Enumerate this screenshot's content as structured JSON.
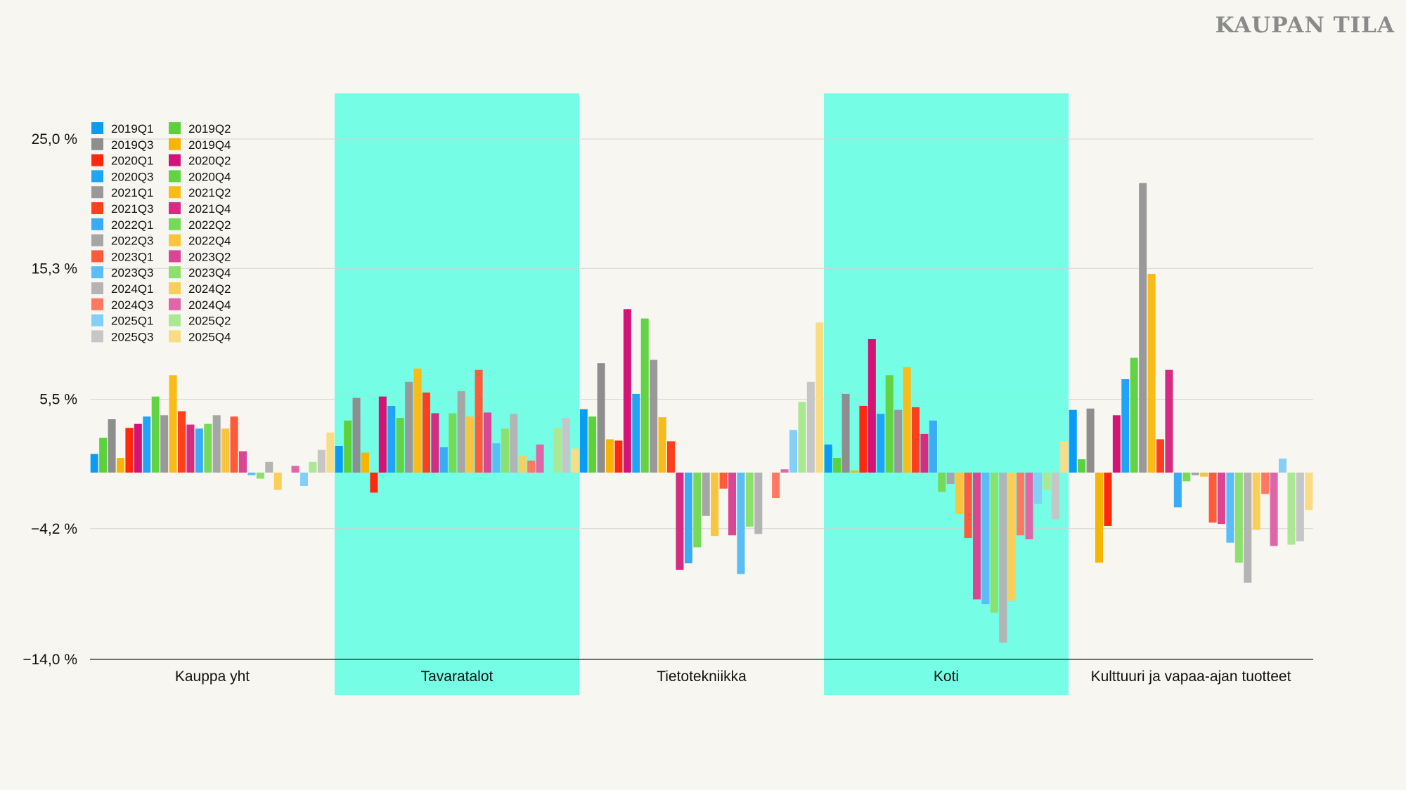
{
  "title": "KAUPAN TILA",
  "chart_data": {
    "type": "bar",
    "title": "KAUPAN TILA",
    "xlabel": "",
    "ylabel": "",
    "ylim": [
      -14.0,
      25.0
    ],
    "yticks": [
      25.0,
      15.3,
      5.5,
      -4.2,
      -14.0
    ],
    "ytick_labels": [
      "25,0 %",
      "15,3 %",
      "5,5 %",
      "−4,2 %",
      "−14,0 %"
    ],
    "grid": true,
    "legend_placement": "top-left",
    "highlighted_categories": [
      "Tavaratalot",
      "Koti"
    ],
    "highlight_color": "#76fde6",
    "categories": [
      "Kauppa yht",
      "Tavaratalot",
      "Tietotekniikka",
      "Koti",
      "Kulttuuri ja vapaa-ajan tuotteet"
    ],
    "series": [
      {
        "name": "2019Q1",
        "color": "#0a9cf5",
        "values": [
          1.4,
          2.0,
          4.75,
          2.1,
          4.7
        ]
      },
      {
        "name": "2019Q2",
        "color": "#5bd23c",
        "values": [
          2.6,
          3.9,
          4.2,
          1.1,
          1.0
        ]
      },
      {
        "name": "2019Q3",
        "color": "#8e8e8e",
        "values": [
          4.0,
          5.6,
          8.2,
          5.9,
          4.8
        ]
      },
      {
        "name": "2019Q4",
        "color": "#f7b500",
        "values": [
          1.1,
          1.5,
          2.5,
          0.15,
          -6.75
        ]
      },
      {
        "name": "2020Q1",
        "color": "#ff2a0e",
        "values": [
          3.35,
          -1.5,
          2.4,
          5.0,
          -4.0
        ]
      },
      {
        "name": "2020Q2",
        "color": "#d31476",
        "values": [
          3.65,
          5.7,
          12.25,
          10.0,
          4.3
        ]
      },
      {
        "name": "2020Q3",
        "color": "#1ea5f5",
        "values": [
          4.2,
          5.0,
          5.9,
          4.4,
          7.0
        ]
      },
      {
        "name": "2020Q4",
        "color": "#62d444",
        "values": [
          5.7,
          4.1,
          11.55,
          7.3,
          8.6
        ]
      },
      {
        "name": "2021Q1",
        "color": "#999999",
        "values": [
          4.3,
          6.8,
          8.45,
          4.7,
          21.7
        ]
      },
      {
        "name": "2021Q2",
        "color": "#f8bb18",
        "values": [
          7.3,
          7.8,
          4.15,
          7.9,
          14.9
        ]
      },
      {
        "name": "2021Q3",
        "color": "#ff3f20",
        "values": [
          4.6,
          6.0,
          2.35,
          4.9,
          2.5
        ]
      },
      {
        "name": "2021Q4",
        "color": "#d62b82",
        "values": [
          3.6,
          4.45,
          -7.3,
          2.9,
          7.7
        ]
      },
      {
        "name": "2022Q1",
        "color": "#3aacf6",
        "values": [
          3.3,
          1.9,
          -6.8,
          3.9,
          -2.6
        ]
      },
      {
        "name": "2022Q2",
        "color": "#76da56",
        "values": [
          3.65,
          4.45,
          -5.6,
          -1.45,
          -0.65
        ]
      },
      {
        "name": "2022Q3",
        "color": "#a6a6a6",
        "values": [
          4.3,
          6.1,
          -3.25,
          -0.85,
          -0.2
        ]
      },
      {
        "name": "2022Q4",
        "color": "#f9c43e",
        "values": [
          3.3,
          4.2,
          -4.75,
          -3.1,
          -0.3
        ]
      },
      {
        "name": "2023Q1",
        "color": "#ff5a3c",
        "values": [
          4.2,
          7.7,
          -1.2,
          -4.9,
          -3.75
        ]
      },
      {
        "name": "2023Q2",
        "color": "#da4594",
        "values": [
          1.6,
          4.5,
          -4.7,
          -9.5,
          -3.85
        ]
      },
      {
        "name": "2023Q3",
        "color": "#5bbdf8",
        "values": [
          -0.2,
          2.2,
          -7.6,
          -9.85,
          -5.25
        ]
      },
      {
        "name": "2023Q4",
        "color": "#8de06d",
        "values": [
          -0.45,
          3.3,
          -4.05,
          -10.5,
          -6.75
        ]
      },
      {
        "name": "2024Q1",
        "color": "#b4b4b4",
        "values": [
          0.8,
          4.4,
          -4.6,
          -12.75,
          -8.25
        ]
      },
      {
        "name": "2024Q2",
        "color": "#f9cf5c",
        "values": [
          -1.3,
          1.25,
          0,
          -9.6,
          -4.3
        ]
      },
      {
        "name": "2024Q3",
        "color": "#ff7862",
        "values": [
          0,
          0.9,
          -1.9,
          -4.7,
          -1.6
        ]
      },
      {
        "name": "2024Q4",
        "color": "#e066a8",
        "values": [
          0.5,
          2.1,
          0.25,
          -5.0,
          -5.5
        ]
      },
      {
        "name": "2025Q1",
        "color": "#84cffa",
        "values": [
          -1.0,
          0,
          3.2,
          -2.35,
          1.05
        ]
      },
      {
        "name": "2025Q2",
        "color": "#abe894",
        "values": [
          0.8,
          3.35,
          5.3,
          -1.3,
          -5.4
        ]
      },
      {
        "name": "2025Q3",
        "color": "#c6c6c6",
        "values": [
          1.7,
          4.1,
          6.8,
          -3.5,
          -5.15
        ]
      },
      {
        "name": "2025Q4",
        "color": "#fadc85",
        "values": [
          3.0,
          1.8,
          11.25,
          2.35,
          -2.8
        ]
      }
    ]
  }
}
